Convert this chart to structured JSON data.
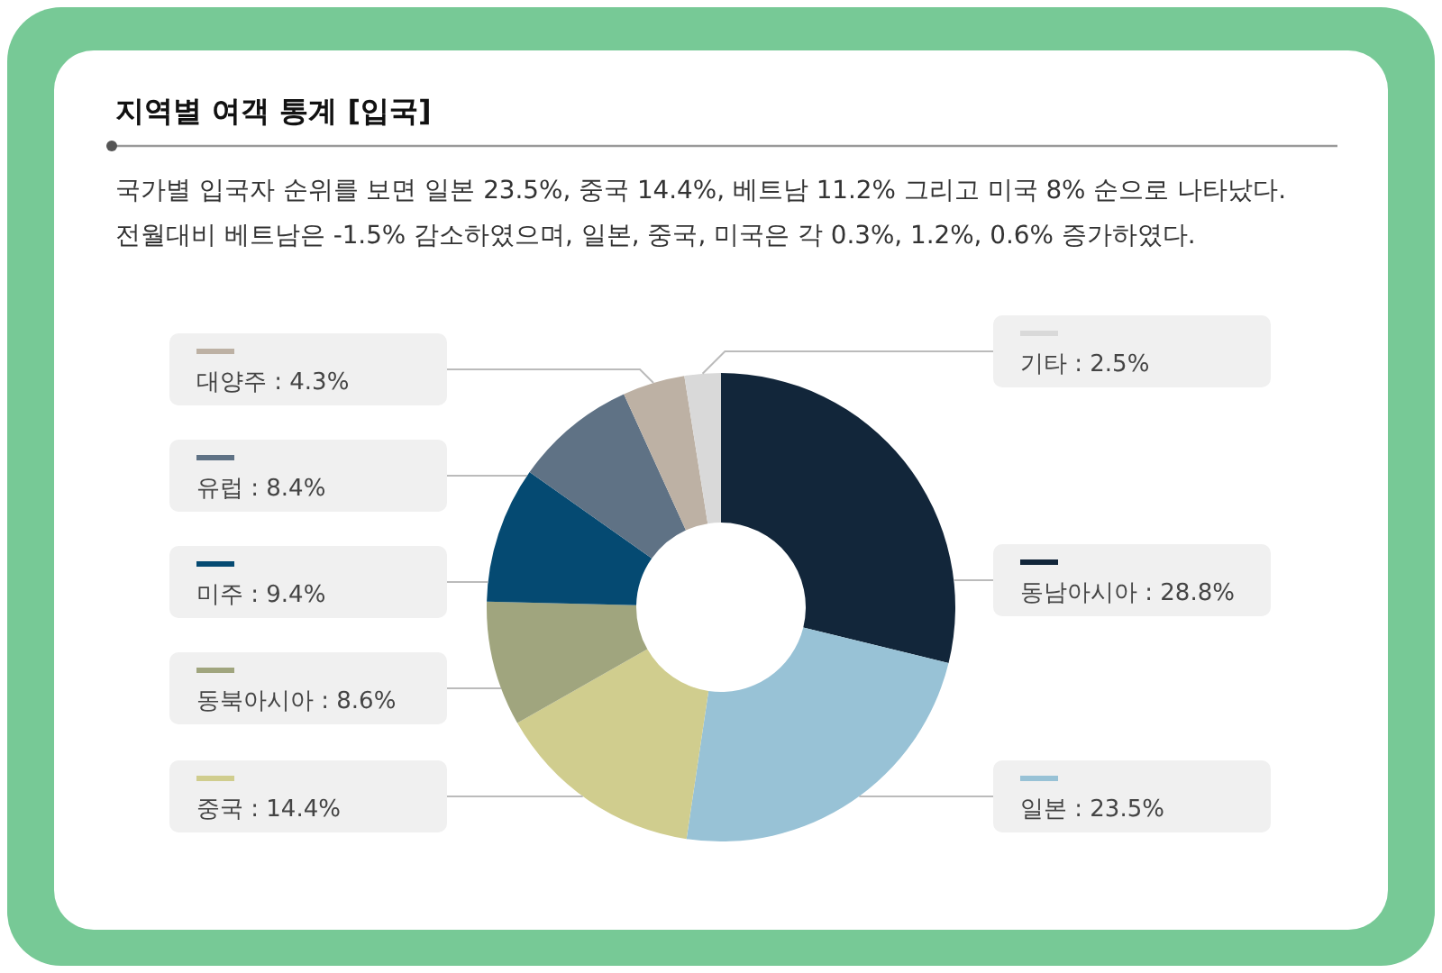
{
  "chart_data": {
    "type": "donut",
    "title": "지역별 여객 통계 [입국]",
    "subtitle": "국가별 입국자 순위를 보면 일본 23.5%, 중국 14.4%, 베트남 11.2% 그리고 미국 8% 순으로 나타났다.",
    "annotations": [
      "전월대비 베트남은 -1.5% 감소하였으며, 일본, 중국, 미국은 각 0.3%, 1.2%, 0.6% 증가하였다."
    ],
    "categories": [
      "동남아시아",
      "일본",
      "중국",
      "동북아시아",
      "미주",
      "유럽",
      "대양주",
      "기타"
    ],
    "values": [
      28.8,
      23.5,
      14.4,
      8.6,
      9.4,
      8.4,
      4.3,
      2.5
    ],
    "value_labels": [
      ": 28.8%",
      ": 23.5%",
      ": 14.4%",
      ": 8.6%",
      ": 9.4%",
      ": 8.4%",
      ": 4.3%",
      ": 2.5%"
    ],
    "colors": [
      "#12263a",
      "#98c2d6",
      "#d0cd8e",
      "#a0a57e",
      "#054a72",
      "#5f7285",
      "#bdb1a4",
      "#d9d9d9"
    ],
    "legend": "left"
  }
}
